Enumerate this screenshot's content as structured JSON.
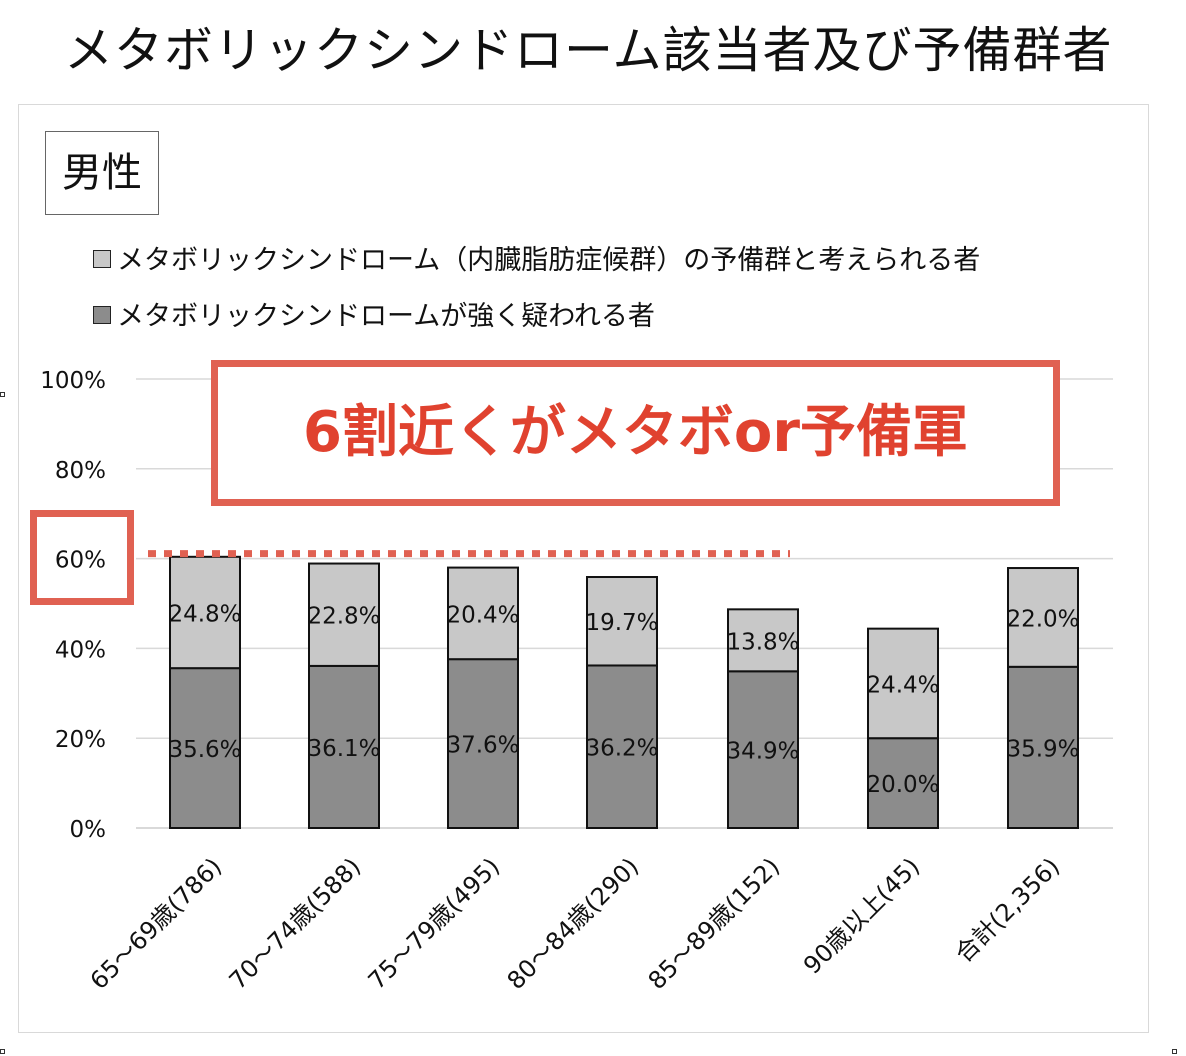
{
  "title": "メタボリックシンドローム該当者及び予備群者",
  "sex_label": "男性",
  "callout": "6割近くがメタボor予備軍",
  "colors": {
    "reserve": "#c8c8c8",
    "strong": "#8c8c8c",
    "grid": "#d9d9d9",
    "highlight": "#e06152",
    "callout_text": "#e0422f"
  },
  "legend": [
    {
      "label": "メタボリックシンドローム（内臓脂肪症候群）の予備群と考えられる者",
      "series": "reserve"
    },
    {
      "label": "メタボリックシンドロームが強く疑われる者",
      "series": "strong"
    }
  ],
  "chart_data": {
    "type": "bar",
    "stacked": true,
    "title": "メタボリックシンドローム該当者及び予備群者",
    "categories": [
      "65～69歳(786)",
      "70～74歳(588)",
      "75～79歳(495)",
      "80～84歳(290)",
      "85～89歳(152)",
      "90歳以上(45)",
      "合計(2,356)"
    ],
    "series": [
      {
        "name": "メタボリックシンドロームが強く疑われる者",
        "values": [
          35.6,
          36.1,
          37.6,
          36.2,
          34.9,
          20.0,
          35.9
        ],
        "labels": [
          "35.6%",
          "36.1%",
          "37.6%",
          "36.2%",
          "34.9%",
          "20.0%",
          "35.9%"
        ]
      },
      {
        "name": "メタボリックシンドローム（内臓脂肪症候群）の予備群と考えられる者",
        "values": [
          24.8,
          22.8,
          20.4,
          19.7,
          13.8,
          24.4,
          22.0
        ],
        "labels": [
          "24.8%",
          "22.8%",
          "20.4%",
          "19.7%",
          "13.8%",
          "24.4%",
          "22.0%"
        ]
      }
    ],
    "ylim": [
      0,
      100
    ],
    "yticks": [
      "0%",
      "20%",
      "40%",
      "60%",
      "80%",
      "100%"
    ],
    "ytick_values": [
      0,
      20,
      40,
      60,
      80,
      100
    ],
    "reference_line": 60,
    "grid": true,
    "legend_position": "top-left"
  }
}
